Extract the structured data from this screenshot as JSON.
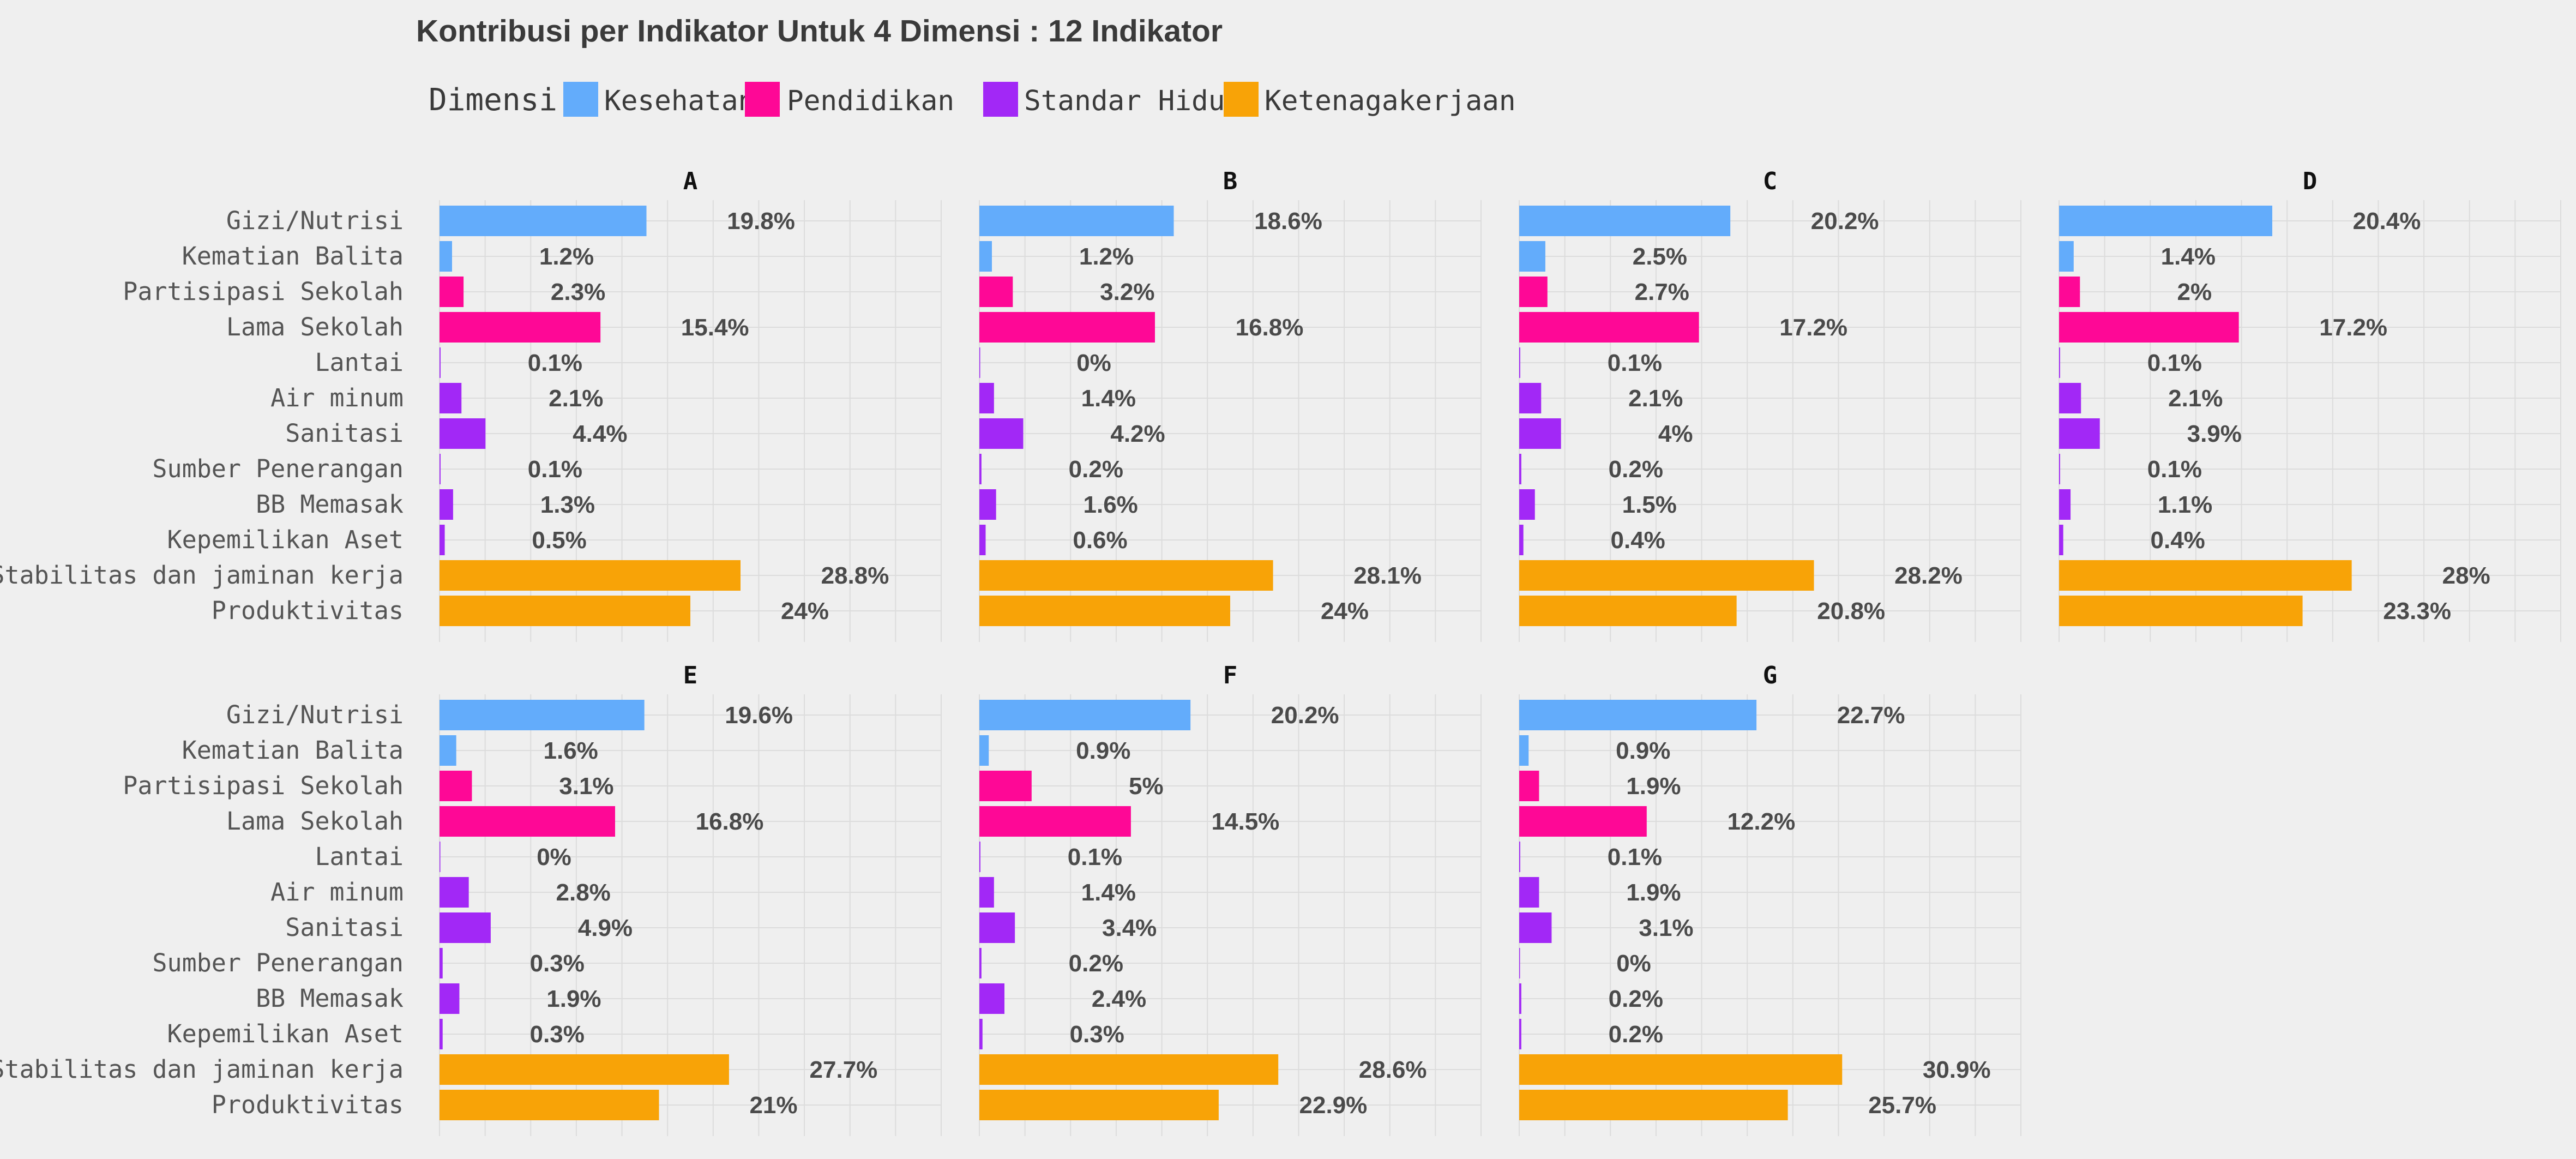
{
  "chart_data": {
    "type": "bar",
    "orientation": "horizontal",
    "title": "Kontribusi per Indikator Untuk 4 Dimensi : 12 Indikator",
    "legend": {
      "title": "Dimensi",
      "placement": "top-left",
      "entries": [
        {
          "name": "Kesehatan",
          "color": "#63acfb"
        },
        {
          "name": "Pendidikan",
          "color": "#fe0896"
        },
        {
          "name": "Standar Hidup",
          "color": "#a228f6"
        },
        {
          "name": "Ketenagakerjaan",
          "color": "#f8a307"
        }
      ]
    },
    "grid": true,
    "xlim": [
      0,
      48
    ],
    "categories": [
      "Gizi/Nutrisi",
      "Kematian Balita",
      "Partisipasi Sekolah",
      "Lama Sekolah",
      "Lantai",
      "Air minum",
      "Sanitasi",
      "Sumber Penerangan",
      "BB Memasak",
      "Kepemilikan Aset",
      "Stabilitas dan jaminan kerja",
      "Produktivitas"
    ],
    "category_dimension": [
      "Kesehatan",
      "Kesehatan",
      "Pendidikan",
      "Pendidikan",
      "Standar Hidup",
      "Standar Hidup",
      "Standar Hidup",
      "Standar Hidup",
      "Standar Hidup",
      "Standar Hidup",
      "Ketenagakerjaan",
      "Ketenagakerjaan"
    ],
    "panels": [
      {
        "name": "A",
        "values": [
          19.8,
          1.2,
          2.3,
          15.4,
          0.1,
          2.1,
          4.4,
          0.1,
          1.3,
          0.5,
          28.8,
          24.0
        ],
        "labels": [
          "19.8%",
          "1.2%",
          "2.3%",
          "15.4%",
          "0.1%",
          "2.1%",
          "4.4%",
          "0.1%",
          "1.3%",
          "0.5%",
          "28.8%",
          "24%"
        ]
      },
      {
        "name": "B",
        "values": [
          18.6,
          1.2,
          3.2,
          16.8,
          0.0,
          1.4,
          4.2,
          0.2,
          1.6,
          0.6,
          28.1,
          24.0
        ],
        "labels": [
          "18.6%",
          "1.2%",
          "3.2%",
          "16.8%",
          "0%",
          "1.4%",
          "4.2%",
          "0.2%",
          "1.6%",
          "0.6%",
          "28.1%",
          "24%"
        ]
      },
      {
        "name": "C",
        "values": [
          20.2,
          2.5,
          2.7,
          17.2,
          0.1,
          2.1,
          4.0,
          0.2,
          1.5,
          0.4,
          28.2,
          20.8
        ],
        "labels": [
          "20.2%",
          "2.5%",
          "2.7%",
          "17.2%",
          "0.1%",
          "2.1%",
          "4%",
          "0.2%",
          "1.5%",
          "0.4%",
          "28.2%",
          "20.8%"
        ]
      },
      {
        "name": "D",
        "values": [
          20.4,
          1.4,
          2.0,
          17.2,
          0.1,
          2.1,
          3.9,
          0.1,
          1.1,
          0.4,
          28.0,
          23.3
        ],
        "labels": [
          "20.4%",
          "1.4%",
          "2%",
          "17.2%",
          "0.1%",
          "2.1%",
          "3.9%",
          "0.1%",
          "1.1%",
          "0.4%",
          "28%",
          "23.3%"
        ]
      },
      {
        "name": "E",
        "values": [
          19.6,
          1.6,
          3.1,
          16.8,
          0.0,
          2.8,
          4.9,
          0.3,
          1.9,
          0.3,
          27.7,
          21.0
        ],
        "labels": [
          "19.6%",
          "1.6%",
          "3.1%",
          "16.8%",
          "0%",
          "2.8%",
          "4.9%",
          "0.3%",
          "1.9%",
          "0.3%",
          "27.7%",
          "21%"
        ]
      },
      {
        "name": "F",
        "values": [
          20.2,
          0.9,
          5.0,
          14.5,
          0.1,
          1.4,
          3.4,
          0.2,
          2.4,
          0.3,
          28.6,
          22.9
        ],
        "labels": [
          "20.2%",
          "0.9%",
          "5%",
          "14.5%",
          "0.1%",
          "1.4%",
          "3.4%",
          "0.2%",
          "2.4%",
          "0.3%",
          "28.6%",
          "22.9%"
        ]
      },
      {
        "name": "G",
        "values": [
          22.7,
          0.9,
          1.9,
          12.2,
          0.1,
          1.9,
          3.1,
          0.0,
          0.2,
          0.2,
          30.9,
          25.7
        ],
        "labels": [
          "22.7%",
          "0.9%",
          "1.9%",
          "12.2%",
          "0.1%",
          "1.9%",
          "3.1%",
          "0%",
          "0.2%",
          "0.2%",
          "30.9%",
          "25.7%"
        ]
      }
    ]
  }
}
